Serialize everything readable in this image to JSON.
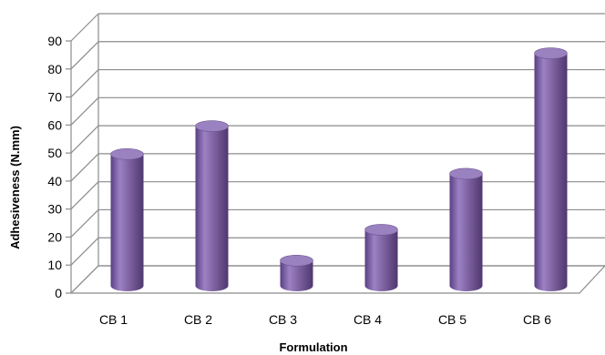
{
  "chart_data": {
    "type": "bar",
    "style": "3d-cylinder",
    "categories": [
      "CB 1",
      "CB 2",
      "CB 3",
      "CB 4",
      "CB 5",
      "CB 6"
    ],
    "values": [
      47,
      57,
      9,
      20,
      40,
      83
    ],
    "xlabel": "Formulation",
    "ylabel": "Adhesiveness  (N.mm)",
    "ylim": [
      0,
      90
    ],
    "yticks": [
      0,
      10,
      20,
      30,
      40,
      50,
      60,
      70,
      80,
      90
    ],
    "grid": true,
    "legend": "none",
    "bar_color": "#8064A2"
  }
}
